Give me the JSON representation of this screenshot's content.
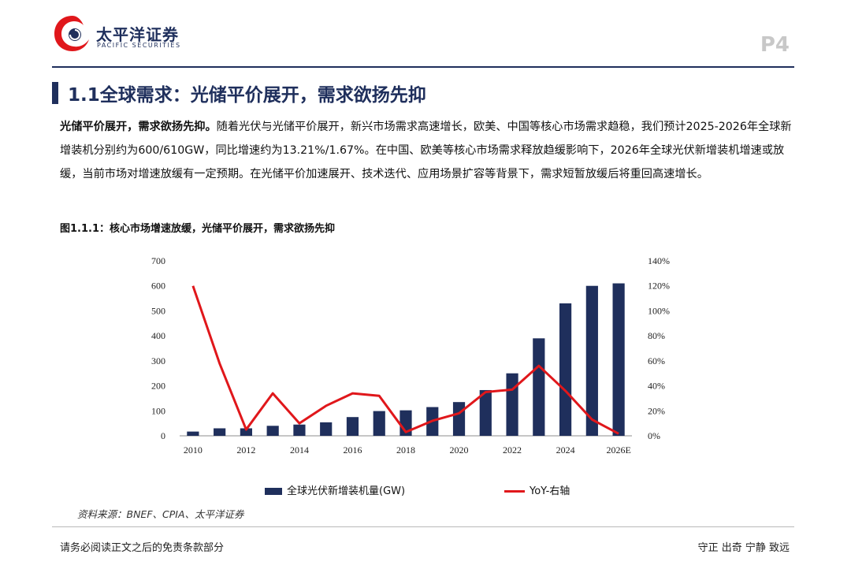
{
  "header": {
    "brand_cn": "太平洋证券",
    "brand_en": "PACIFIC SECURITIES",
    "page_number": "P4",
    "colors": {
      "navy": "#1f2f5c",
      "red": "#e0171b"
    }
  },
  "section": {
    "title": "1.1全球需求：光储平价展开，需求欲扬先抑"
  },
  "body": {
    "lead": "光储平价展开，需求欲扬先抑。",
    "text": "随着光伏与光储平价展开，新兴市场需求高速增长，欧美、中国等核心市场需求趋稳，我们预计2025-2026年全球新增装机分别约为600/610GW，同比增速约为13.21%/1.67%。在中国、欧美等核心市场需求释放趋缓影响下，2026年全球光伏新增装机增速或放缓，当前市场对增速放缓有一定预期。在光储平价加速展开、技术迭代、应用场景扩容等背景下，需求短暂放缓后将重回高速增长。"
  },
  "figure": {
    "caption": "图1.1.1：核心市场增速放缓，光储平价展开，需求欲扬先抑",
    "source": "资料来源：BNEF、CPIA、太平洋证券"
  },
  "chart_data": {
    "type": "bar",
    "categories": [
      "2010",
      "2011",
      "2012",
      "2013",
      "2014",
      "2015",
      "2016",
      "2017",
      "2018",
      "2019",
      "2020",
      "2021",
      "2022",
      "2023",
      "2024",
      "2025E",
      "2026E"
    ],
    "x_tick_labels": [
      "2010",
      "2012",
      "2014",
      "2016",
      "2018",
      "2020",
      "2022",
      "2024",
      "2026E"
    ],
    "series": [
      {
        "name": "全球光伏新增装机量(GW)",
        "kind": "bar",
        "axis": "left",
        "color": "#1f2f5c",
        "values": [
          17,
          30,
          30,
          40,
          45,
          54,
          75,
          99,
          102,
          115,
          135,
          183,
          250,
          390,
          530,
          600,
          610
        ]
      },
      {
        "name": "YoY-右轴",
        "kind": "line",
        "axis": "right",
        "color": "#e0171b",
        "values": [
          1.2,
          0.58,
          0.05,
          0.34,
          0.1,
          0.24,
          0.34,
          0.32,
          0.03,
          0.12,
          0.18,
          0.35,
          0.37,
          0.56,
          0.36,
          0.13,
          0.0167
        ]
      }
    ],
    "y_left": {
      "min": 0,
      "max": 700,
      "ticks": [
        0,
        100,
        200,
        300,
        400,
        500,
        600,
        700
      ]
    },
    "y_right": {
      "min": 0,
      "max": 1.4,
      "ticks": [
        "0%",
        "20%",
        "40%",
        "60%",
        "80%",
        "100%",
        "120%",
        "140%"
      ]
    },
    "grid": false,
    "legend": "bottom"
  },
  "footer": {
    "disclaimer": "请务必阅读正文之后的免责条款部分",
    "motto": "守正 出奇 宁静 致远"
  }
}
